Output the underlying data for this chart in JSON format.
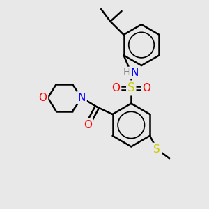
{
  "bg_color": "#e8e8e8",
  "bond_color": "#000000",
  "bond_width": 1.8,
  "atom_colors": {
    "N": "#0000ff",
    "O": "#ff0000",
    "S": "#cccc00",
    "H": "#808080"
  },
  "font_size": 11,
  "fig_size": [
    3.0,
    3.0
  ],
  "dpi": 100
}
